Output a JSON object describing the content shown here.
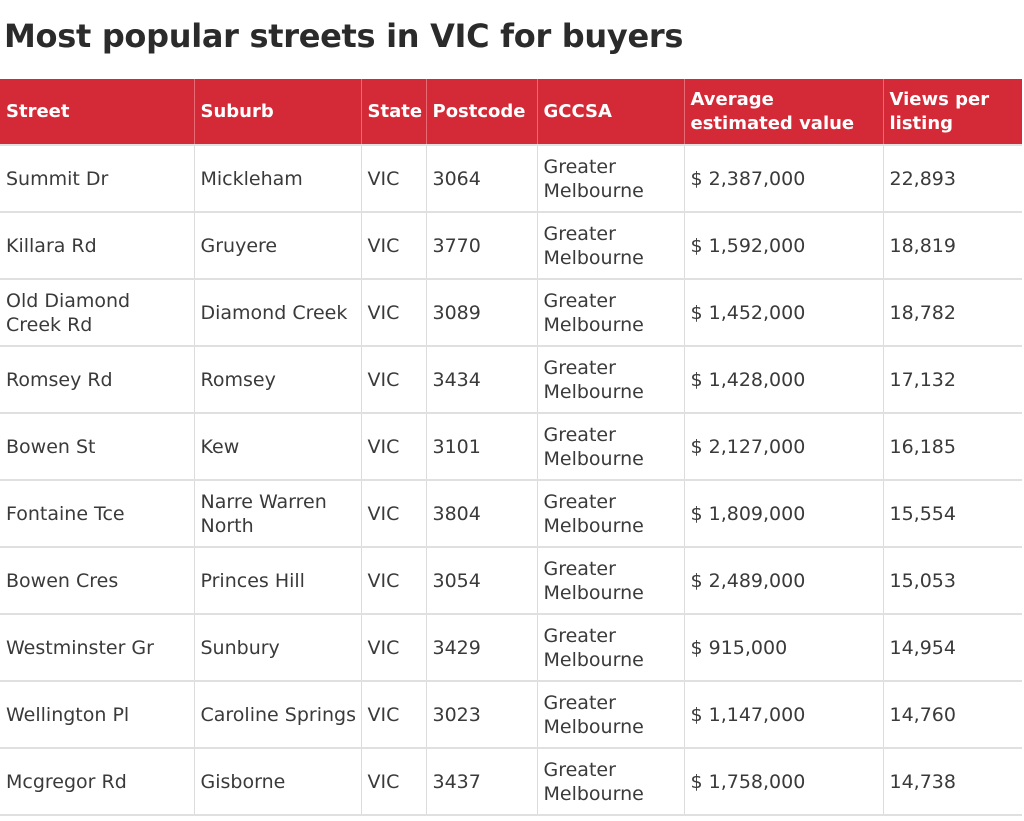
{
  "title": "Most popular streets in VIC for buyers",
  "colors": {
    "header_background": "#d42936",
    "header_text": "#ffffff",
    "body_text": "#3a3a3a",
    "row_divider": "#e0e0e0"
  },
  "chart_data": {
    "type": "table",
    "title": "Most popular streets in VIC for buyers",
    "columns": [
      "Street",
      "Suburb",
      "State",
      "Postcode",
      "GCCSA",
      "Average estimated value",
      "Views per listing"
    ],
    "rows": [
      [
        "Summit Dr",
        "Mickleham",
        "VIC",
        "3064",
        "Greater Melbourne",
        "$ 2,387,000",
        "22,893"
      ],
      [
        "Killara Rd",
        "Gruyere",
        "VIC",
        "3770",
        "Greater Melbourne",
        "$ 1,592,000",
        "18,819"
      ],
      [
        "Old Diamond Creek Rd",
        "Diamond Creek",
        "VIC",
        "3089",
        "Greater Melbourne",
        "$ 1,452,000",
        "18,782"
      ],
      [
        "Romsey Rd",
        "Romsey",
        "VIC",
        "3434",
        "Greater Melbourne",
        "$ 1,428,000",
        "17,132"
      ],
      [
        "Bowen St",
        "Kew",
        "VIC",
        "3101",
        "Greater Melbourne",
        "$ 2,127,000",
        "16,185"
      ],
      [
        "Fontaine Tce",
        "Narre Warren North",
        "VIC",
        "3804",
        "Greater Melbourne",
        "$ 1,809,000",
        "15,554"
      ],
      [
        "Bowen Cres",
        "Princes Hill",
        "VIC",
        "3054",
        "Greater Melbourne",
        "$ 2,489,000",
        "15,053"
      ],
      [
        "Westminster Gr",
        "Sunbury",
        "VIC",
        "3429",
        "Greater Melbourne",
        "$ 915,000",
        "14,954"
      ],
      [
        "Wellington Pl",
        "Caroline Springs",
        "VIC",
        "3023",
        "Greater Melbourne",
        "$ 1,147,000",
        "14,760"
      ],
      [
        "Mcgregor Rd",
        "Gisborne",
        "VIC",
        "3437",
        "Greater Melbourne",
        "$ 1,758,000",
        "14,738"
      ]
    ]
  }
}
